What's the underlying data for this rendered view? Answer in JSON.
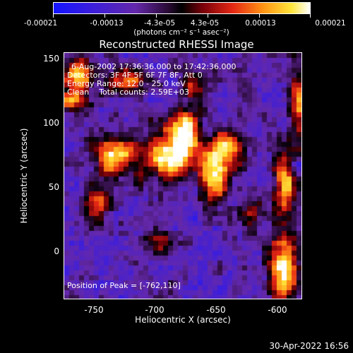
{
  "colorbar": {
    "ticks": [
      "-0.00021",
      "-0.00013",
      "-4.3e-05",
      "4.3e-05",
      "0.00013",
      "0.00021"
    ],
    "units": "(photons cm⁻² s⁻¹ asec⁻²)"
  },
  "title": "Reconstructed RHESSI Image",
  "annotations": {
    "time_range": "6-Aug-2002 17:36:36.000 to 17:42:36.000",
    "detectors": "Detectors: 3F 4F 5F 6F 7F 8F, Att 0",
    "energy": "Energy Range: 12.0 - 25.0 keV",
    "clean": "Clean    Total counts: 2.59E+03",
    "peak": "Position of Peak = [-762,110]"
  },
  "axes": {
    "xlabel": "Heliocentric X (arcsec)",
    "ylabel": "Heliocentric Y (arcsec)",
    "xticks": [
      "-750",
      "-700",
      "-650",
      "-600"
    ],
    "yticks": [
      "150",
      "100",
      "50",
      "0"
    ]
  },
  "footer": {
    "timestamp": "30-Apr-2022 16:56"
  }
}
